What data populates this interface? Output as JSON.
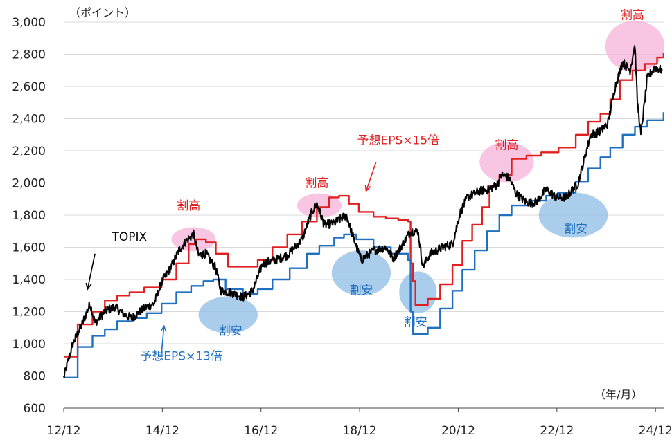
{
  "chart_data": {
    "type": "line",
    "y_unit_label": "（ポイント）",
    "x_unit_label": "（年/月）",
    "ylim": [
      600,
      3000
    ],
    "yticks": [
      600,
      800,
      1000,
      1200,
      1400,
      1600,
      1800,
      2000,
      2200,
      2400,
      2600,
      2800,
      3000
    ],
    "ytick_labels": [
      "600",
      "800",
      "1,000",
      "1,200",
      "1,400",
      "1,600",
      "1,800",
      "2,000",
      "2,200",
      "2,400",
      "2,600",
      "2,800",
      "3,000"
    ],
    "xlim": [
      2012.917,
      2025.083
    ],
    "xticks": [
      2012.917,
      2014.917,
      2016.917,
      2018.917,
      2020.917,
      2022.917,
      2024.917
    ],
    "xtick_labels": [
      "12/12",
      "14/12",
      "16/12",
      "18/12",
      "20/12",
      "22/12",
      "24/12"
    ],
    "grid": "horizontal",
    "series": [
      {
        "name": "TOPIX",
        "color": "#000000",
        "noise": true,
        "points": [
          [
            2012.917,
            790
          ],
          [
            2013.1,
            1000
          ],
          [
            2013.3,
            1130
          ],
          [
            2013.45,
            1250
          ],
          [
            2013.55,
            1130
          ],
          [
            2013.75,
            1200
          ],
          [
            2013.95,
            1230
          ],
          [
            2014.15,
            1180
          ],
          [
            2014.3,
            1160
          ],
          [
            2014.55,
            1220
          ],
          [
            2014.75,
            1250
          ],
          [
            2014.9,
            1380
          ],
          [
            2015.1,
            1480
          ],
          [
            2015.25,
            1580
          ],
          [
            2015.4,
            1640
          ],
          [
            2015.55,
            1680
          ],
          [
            2015.65,
            1550
          ],
          [
            2015.8,
            1560
          ],
          [
            2016.0,
            1470
          ],
          [
            2016.1,
            1330
          ],
          [
            2016.3,
            1320
          ],
          [
            2016.55,
            1290
          ],
          [
            2016.75,
            1330
          ],
          [
            2016.95,
            1500
          ],
          [
            2017.2,
            1520
          ],
          [
            2017.45,
            1550
          ],
          [
            2017.75,
            1650
          ],
          [
            2017.95,
            1820
          ],
          [
            2018.05,
            1870
          ],
          [
            2018.2,
            1740
          ],
          [
            2018.4,
            1750
          ],
          [
            2018.65,
            1800
          ],
          [
            2018.8,
            1650
          ],
          [
            2018.95,
            1520
          ],
          [
            2019.2,
            1580
          ],
          [
            2019.45,
            1600
          ],
          [
            2019.6,
            1530
          ],
          [
            2019.75,
            1600
          ],
          [
            2019.95,
            1700
          ],
          [
            2020.1,
            1700
          ],
          [
            2020.2,
            1480
          ],
          [
            2020.35,
            1560
          ],
          [
            2020.6,
            1600
          ],
          [
            2020.8,
            1620
          ],
          [
            2020.95,
            1810
          ],
          [
            2021.1,
            1910
          ],
          [
            2021.35,
            1950
          ],
          [
            2021.55,
            1960
          ],
          [
            2021.7,
            1990
          ],
          [
            2021.8,
            2050
          ],
          [
            2021.95,
            2030
          ],
          [
            2022.1,
            1930
          ],
          [
            2022.3,
            1880
          ],
          [
            2022.5,
            1880
          ],
          [
            2022.7,
            1960
          ],
          [
            2022.9,
            1910
          ],
          [
            2023.1,
            1910
          ],
          [
            2023.35,
            2000
          ],
          [
            2023.6,
            2300
          ],
          [
            2023.8,
            2320
          ],
          [
            2023.95,
            2370
          ],
          [
            2024.1,
            2600
          ],
          [
            2024.25,
            2750
          ],
          [
            2024.4,
            2700
          ],
          [
            2024.5,
            2860
          ],
          [
            2024.55,
            2500
          ],
          [
            2024.62,
            2300
          ],
          [
            2024.75,
            2650
          ],
          [
            2024.9,
            2720
          ],
          [
            2025.05,
            2700
          ]
        ]
      },
      {
        "name": "予想EPS×15倍",
        "color": "#e02020",
        "noise": false,
        "points": [
          [
            2012.917,
            920
          ],
          [
            2013.2,
            1120
          ],
          [
            2013.5,
            1200
          ],
          [
            2013.75,
            1270
          ],
          [
            2014.0,
            1300
          ],
          [
            2014.25,
            1320
          ],
          [
            2014.55,
            1350
          ],
          [
            2014.9,
            1400
          ],
          [
            2015.2,
            1500
          ],
          [
            2015.45,
            1620
          ],
          [
            2015.6,
            1650
          ],
          [
            2015.8,
            1630
          ],
          [
            2016.0,
            1560
          ],
          [
            2016.25,
            1480
          ],
          [
            2016.55,
            1480
          ],
          [
            2016.85,
            1520
          ],
          [
            2017.15,
            1600
          ],
          [
            2017.45,
            1680
          ],
          [
            2017.75,
            1760
          ],
          [
            2018.05,
            1850
          ],
          [
            2018.3,
            1910
          ],
          [
            2018.5,
            1920
          ],
          [
            2018.7,
            1870
          ],
          [
            2018.9,
            1820
          ],
          [
            2019.2,
            1790
          ],
          [
            2019.45,
            1780
          ],
          [
            2019.7,
            1770
          ],
          [
            2019.9,
            1760
          ],
          [
            2019.95,
            1500
          ],
          [
            2020.0,
            1390
          ],
          [
            2020.05,
            1240
          ],
          [
            2020.3,
            1280
          ],
          [
            2020.55,
            1370
          ],
          [
            2020.8,
            1490
          ],
          [
            2021.0,
            1640
          ],
          [
            2021.2,
            1740
          ],
          [
            2021.4,
            1850
          ],
          [
            2021.55,
            1980
          ],
          [
            2021.75,
            2050
          ],
          [
            2022.0,
            2150
          ],
          [
            2022.3,
            2170
          ],
          [
            2022.6,
            2190
          ],
          [
            2022.95,
            2220
          ],
          [
            2023.3,
            2300
          ],
          [
            2023.55,
            2380
          ],
          [
            2023.8,
            2430
          ],
          [
            2024.0,
            2520
          ],
          [
            2024.2,
            2640
          ],
          [
            2024.45,
            2700
          ],
          [
            2024.7,
            2740
          ],
          [
            2024.95,
            2780
          ],
          [
            2025.08,
            2810
          ]
        ]
      },
      {
        "name": "予想EPS×13倍",
        "color": "#2070c0",
        "noise": false,
        "points": [
          [
            2012.917,
            790
          ],
          [
            2013.2,
            980
          ],
          [
            2013.5,
            1050
          ],
          [
            2013.75,
            1090
          ],
          [
            2014.0,
            1140
          ],
          [
            2014.3,
            1160
          ],
          [
            2014.6,
            1190
          ],
          [
            2014.9,
            1250
          ],
          [
            2015.2,
            1320
          ],
          [
            2015.5,
            1360
          ],
          [
            2015.75,
            1390
          ],
          [
            2015.95,
            1400
          ],
          [
            2016.2,
            1340
          ],
          [
            2016.55,
            1310
          ],
          [
            2016.85,
            1340
          ],
          [
            2017.15,
            1400
          ],
          [
            2017.5,
            1470
          ],
          [
            2017.85,
            1560
          ],
          [
            2018.1,
            1610
          ],
          [
            2018.4,
            1660
          ],
          [
            2018.6,
            1680
          ],
          [
            2018.85,
            1650
          ],
          [
            2019.2,
            1600
          ],
          [
            2019.55,
            1560
          ],
          [
            2019.9,
            1520
          ],
          [
            2019.95,
            1200
          ],
          [
            2020.0,
            1060
          ],
          [
            2020.3,
            1100
          ],
          [
            2020.55,
            1220
          ],
          [
            2020.8,
            1330
          ],
          [
            2021.0,
            1460
          ],
          [
            2021.25,
            1580
          ],
          [
            2021.5,
            1700
          ],
          [
            2021.75,
            1800
          ],
          [
            2022.0,
            1860
          ],
          [
            2022.35,
            1890
          ],
          [
            2022.7,
            1920
          ],
          [
            2022.95,
            1940
          ],
          [
            2023.3,
            2010
          ],
          [
            2023.55,
            2090
          ],
          [
            2023.8,
            2160
          ],
          [
            2024.0,
            2220
          ],
          [
            2024.25,
            2300
          ],
          [
            2024.5,
            2350
          ],
          [
            2024.75,
            2390
          ],
          [
            2025.08,
            2440
          ]
        ]
      }
    ],
    "annotations": [
      {
        "text": "割高",
        "kind": "high",
        "x": 2015.45,
        "y": 1835,
        "ellipse": {
          "cx": 2015.55,
          "cy": 1650,
          "rx": 0.45,
          "ry": 75
        }
      },
      {
        "text": "割安",
        "kind": "low",
        "x": 2016.3,
        "y": 1055,
        "ellipse": {
          "cx": 2016.25,
          "cy": 1180,
          "rx": 0.6,
          "ry": 115
        }
      },
      {
        "text": "割高",
        "kind": "high",
        "x": 2018.05,
        "y": 1975,
        "ellipse": {
          "cx": 2018.1,
          "cy": 1860,
          "rx": 0.45,
          "ry": 75
        }
      },
      {
        "text": "割安",
        "kind": "low",
        "x": 2018.95,
        "y": 1310,
        "ellipse": {
          "cx": 2018.95,
          "cy": 1440,
          "rx": 0.6,
          "ry": 140
        }
      },
      {
        "text": "割安",
        "kind": "low",
        "x": 2020.05,
        "y": 1110,
        "ellipse": {
          "cx": 2020.1,
          "cy": 1320,
          "rx": 0.38,
          "ry": 130
        }
      },
      {
        "text": "割高",
        "kind": "high",
        "x": 2021.9,
        "y": 2210,
        "ellipse": {
          "cx": 2021.9,
          "cy": 2130,
          "rx": 0.55,
          "ry": 125
        }
      },
      {
        "text": "割安",
        "kind": "low",
        "x": 2023.3,
        "y": 1690,
        "ellipse": {
          "cx": 2023.25,
          "cy": 1800,
          "rx": 0.7,
          "ry": 140
        }
      },
      {
        "text": "割高",
        "kind": "high",
        "x": 2024.45,
        "y": 3020,
        "ellipse": {
          "cx": 2024.5,
          "cy": 2850,
          "rx": 0.6,
          "ry": 160
        }
      }
    ],
    "series_labels": [
      {
        "text": "TOPIX",
        "x": 2014.25,
        "y": 1640,
        "color": "#000000",
        "arrow": [
          [
            2013.55,
            1560
          ],
          [
            2013.4,
            1340
          ]
        ]
      },
      {
        "text": "予想EPS×15倍",
        "x": 2019.7,
        "y": 2240,
        "color": "#e02020",
        "arrow": [
          [
            2019.25,
            2130
          ],
          [
            2019.05,
            1950
          ]
        ]
      },
      {
        "text": "予想EPS×13倍",
        "x": 2015.3,
        "y": 900,
        "color": "#2070c0",
        "arrow": [
          [
            2014.9,
            940
          ],
          [
            2014.95,
            1110
          ]
        ]
      }
    ],
    "colors": {
      "high_ellipse": "#f5b3d8",
      "low_ellipse": "#8cbce4",
      "high_text": "#e02020",
      "low_text": "#2070c0",
      "grid": "#d9d9d9"
    }
  }
}
